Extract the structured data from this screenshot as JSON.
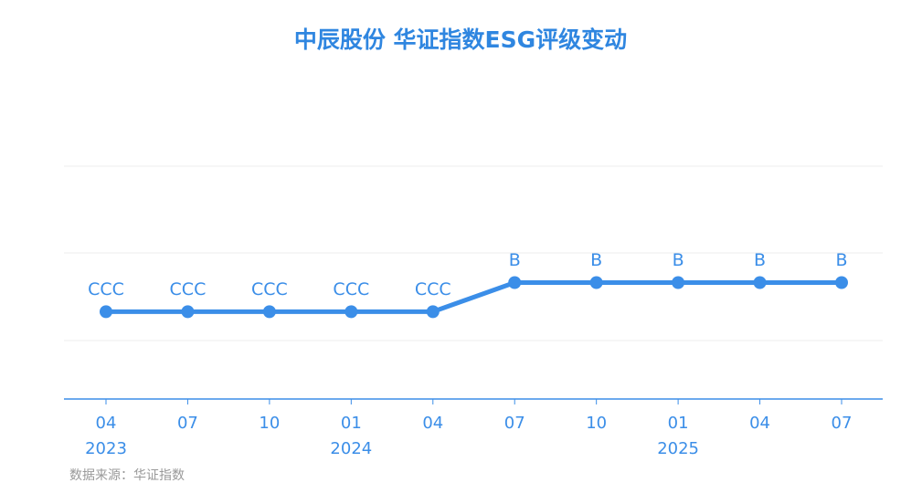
{
  "chart_data": {
    "type": "line",
    "title": "中辰股份 华证指数ESG评级变动",
    "source": "数据来源：华证指数",
    "categories": [
      "04",
      "07",
      "10",
      "01",
      "04",
      "07",
      "10",
      "01",
      "04",
      "07"
    ],
    "years": [
      "2023",
      null,
      null,
      "2024",
      null,
      null,
      null,
      "2025",
      null,
      null
    ],
    "values": [
      3,
      3,
      3,
      3,
      3,
      4,
      4,
      4,
      4,
      4
    ],
    "value_labels": [
      "CCC",
      "CCC",
      "CCC",
      "CCC",
      "CCC",
      "B",
      "B",
      "B",
      "B",
      "B"
    ],
    "color": "#3b8ee8",
    "ylim": [
      0,
      8
    ]
  }
}
